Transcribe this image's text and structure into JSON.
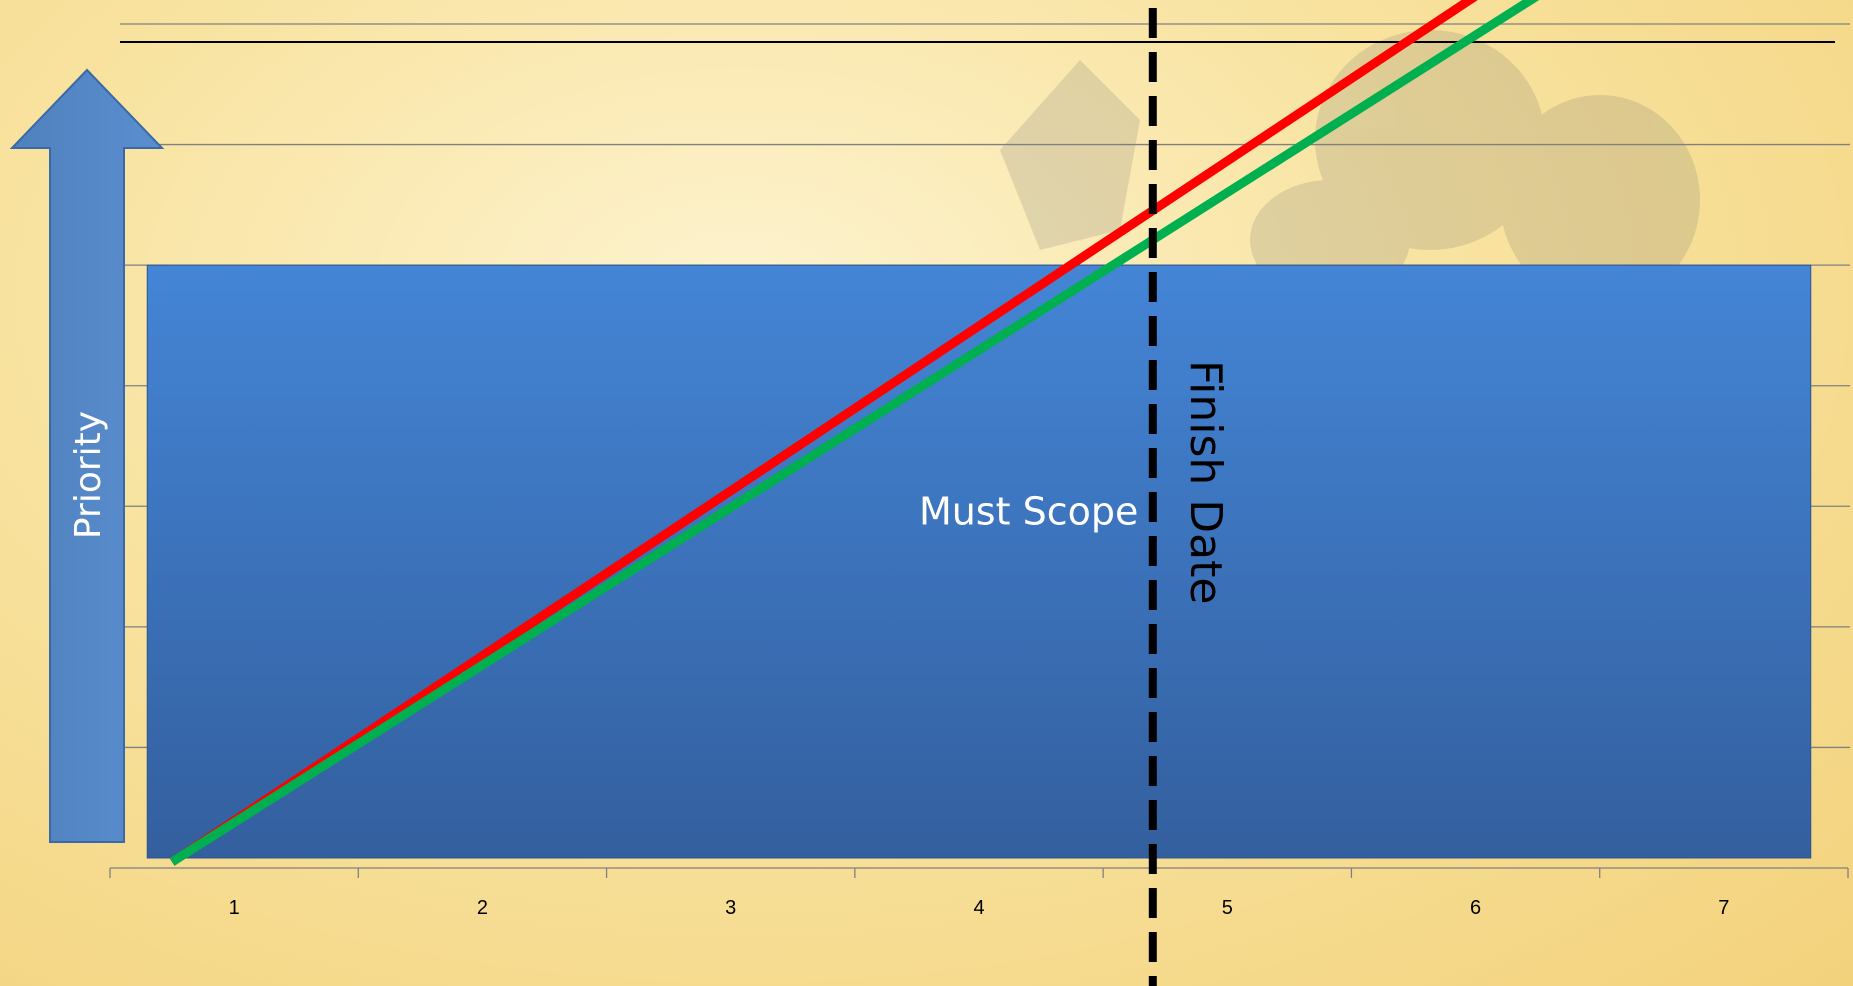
{
  "chart_data": {
    "type": "line",
    "title": "",
    "xlabel": "",
    "ylabel": "Priority",
    "x_categories": [
      "1",
      "2",
      "3",
      "4",
      "5",
      "6",
      "7"
    ],
    "xlim": [
      0.5,
      7.5
    ],
    "ylim": [
      0,
      7
    ],
    "grid": true,
    "legend": "none",
    "must_scope": {
      "label": "Must Scope",
      "x_start": 0.65,
      "x_end": 7.35,
      "y_top": 5,
      "color": "#3d77c3"
    },
    "finish_date": {
      "label": "Finish Date",
      "x": 4.7,
      "color": "#000000"
    },
    "series": [
      {
        "color": "#ff0000",
        "points": [
          [
            0.75,
            0.05
          ],
          [
            6.05,
            7.3
          ]
        ]
      },
      {
        "color": "#00b050",
        "points": [
          [
            0.75,
            0.05
          ],
          [
            6.3,
            7.3
          ]
        ]
      }
    ],
    "priority_arrow": {
      "label": "Priority",
      "color": "#4f81bd"
    }
  }
}
